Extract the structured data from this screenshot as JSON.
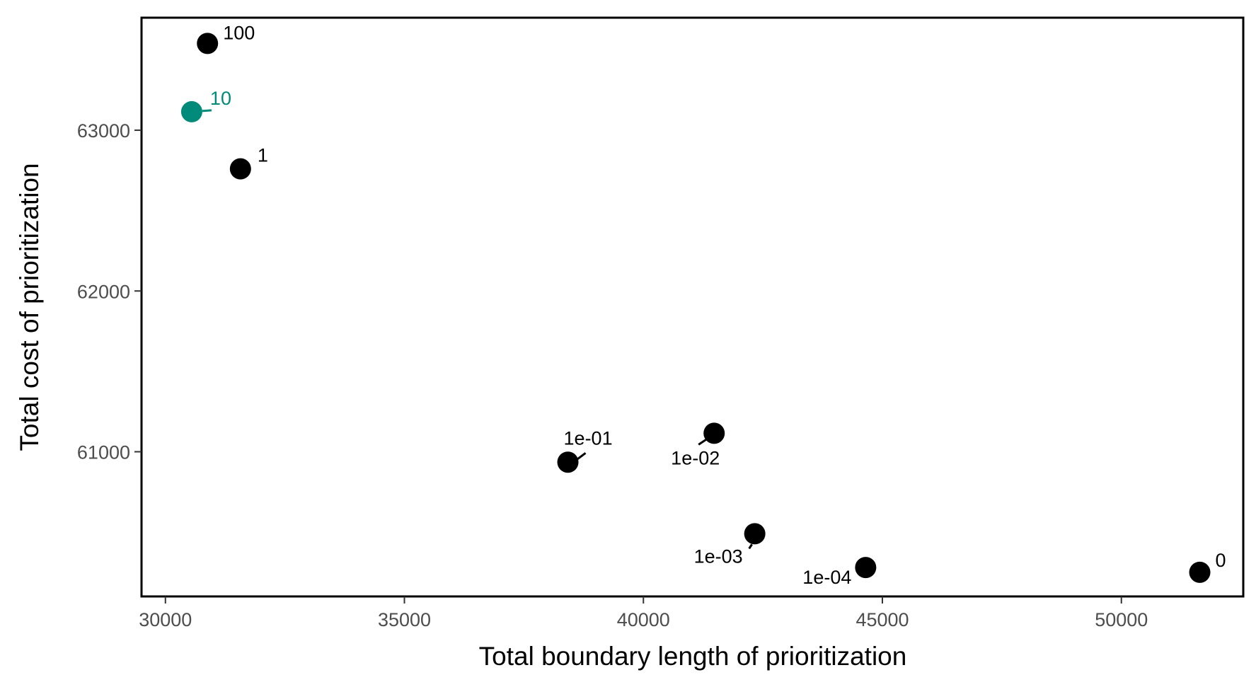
{
  "chart_data": {
    "type": "scatter",
    "title": "",
    "xlabel": "Total boundary length of prioritization",
    "ylabel": "Total cost of prioritization",
    "xlim": [
      29500,
      52550
    ],
    "ylim": [
      60100,
      63700
    ],
    "xticks": [
      30000,
      35000,
      40000,
      45000,
      50000
    ],
    "yticks": [
      61000,
      62000,
      63000
    ],
    "xtick_labels": [
      "30000",
      "35000",
      "40000",
      "45000",
      "50000"
    ],
    "ytick_labels": [
      "61000",
      "62000",
      "63000"
    ],
    "grid": false,
    "legend": "none",
    "colors": {
      "default": "#000000",
      "highlight": "#008a79"
    },
    "points": [
      {
        "label": "100",
        "x": 30880,
        "y": 63540,
        "highlight": false
      },
      {
        "label": "10",
        "x": 30550,
        "y": 63115,
        "highlight": true
      },
      {
        "label": "1",
        "x": 31570,
        "y": 62760,
        "highlight": false
      },
      {
        "label": "1e-01",
        "x": 38420,
        "y": 60935,
        "highlight": false
      },
      {
        "label": "1e-02",
        "x": 41480,
        "y": 61115,
        "highlight": false
      },
      {
        "label": "1e-03",
        "x": 42330,
        "y": 60490,
        "highlight": false
      },
      {
        "label": "1e-04",
        "x": 44650,
        "y": 60280,
        "highlight": false
      },
      {
        "label": "0",
        "x": 51640,
        "y": 60250,
        "highlight": false
      }
    ]
  }
}
